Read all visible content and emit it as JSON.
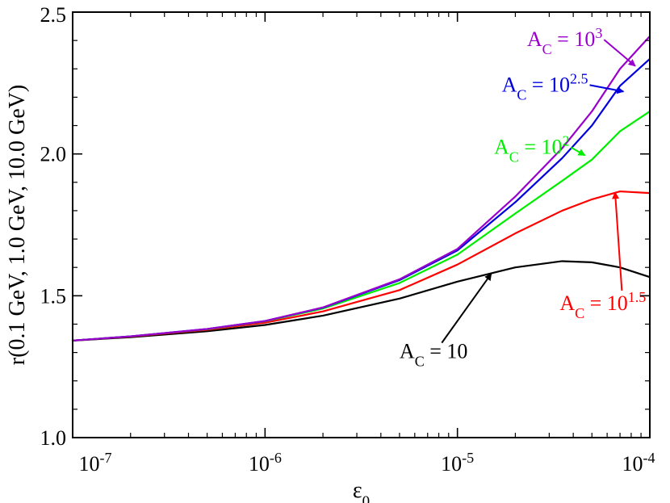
{
  "chart_data": {
    "type": "line",
    "x_scale": "log",
    "xlim": [
      "1e-7",
      "1e-4"
    ],
    "ylim": [
      1.0,
      2.5
    ],
    "grid": false,
    "xlabel": {
      "main": "ε",
      "sub": "0"
    },
    "ylabel": "r(0.1 GeV, 1.0 GeV, 10.0 GeV)",
    "x_ticks": [
      {
        "base": "10",
        "exp": "-7"
      },
      {
        "base": "10",
        "exp": "-6"
      },
      {
        "base": "10",
        "exp": "-5"
      },
      {
        "base": "10",
        "exp": "-4"
      }
    ],
    "y_ticks": [
      "1.0",
      "1.5",
      "2.0",
      "2.5"
    ],
    "series": [
      {
        "key": "ac10",
        "color": "#000000",
        "label": {
          "pre": "A",
          "sub": "C",
          "mid": " = 10",
          "sup": ""
        },
        "x": [
          1e-07,
          2e-07,
          5e-07,
          1e-06,
          2e-06,
          5e-06,
          1e-05,
          2e-05,
          3.5e-05,
          5e-05,
          7e-05,
          0.0001
        ],
        "y": [
          1.342,
          1.354,
          1.375,
          1.397,
          1.43,
          1.49,
          1.55,
          1.6,
          1.622,
          1.618,
          1.6,
          1.566
        ]
      },
      {
        "key": "ac10_1.5",
        "color": "#ff0000",
        "label": {
          "pre": "A",
          "sub": "C",
          "mid": " = 10",
          "sup": "1.5"
        },
        "x": [
          1e-07,
          2e-07,
          5e-07,
          1e-06,
          2e-06,
          5e-06,
          1e-05,
          2e-05,
          3.5e-05,
          5e-05,
          7e-05,
          0.0001
        ],
        "y": [
          1.342,
          1.356,
          1.38,
          1.405,
          1.445,
          1.52,
          1.61,
          1.72,
          1.8,
          1.84,
          1.868,
          1.862
        ]
      },
      {
        "key": "ac10_2",
        "color": "#00ee00",
        "label": {
          "pre": "A",
          "sub": "C",
          "mid": " = 10",
          "sup": "2"
        },
        "x": [
          1e-07,
          2e-07,
          5e-07,
          1e-06,
          2e-06,
          5e-06,
          1e-05,
          2e-05,
          3.5e-05,
          5e-05,
          7e-05,
          0.0001
        ],
        "y": [
          1.342,
          1.357,
          1.382,
          1.41,
          1.455,
          1.545,
          1.645,
          1.79,
          1.905,
          1.98,
          2.08,
          2.15
        ]
      },
      {
        "key": "ac10_2.5",
        "color": "#0000dd",
        "label": {
          "pre": "A",
          "sub": "C",
          "mid": " = 10",
          "sup": "2.5"
        },
        "x": [
          1e-07,
          2e-07,
          5e-07,
          1e-06,
          2e-06,
          5e-06,
          1e-05,
          2e-05,
          3.5e-05,
          5e-05,
          7e-05,
          0.0001
        ],
        "y": [
          1.342,
          1.357,
          1.383,
          1.411,
          1.458,
          1.555,
          1.66,
          1.83,
          1.985,
          2.1,
          2.24,
          2.335
        ]
      },
      {
        "key": "ac10_3",
        "color": "#9900cc",
        "label": {
          "pre": "A",
          "sub": "C",
          "mid": " = 10",
          "sup": "3"
        },
        "x": [
          1e-07,
          2e-07,
          5e-07,
          1e-06,
          2e-06,
          5e-06,
          1e-05,
          2e-05,
          3.5e-05,
          5e-05,
          7e-05,
          0.0001
        ],
        "y": [
          1.342,
          1.357,
          1.383,
          1.411,
          1.459,
          1.558,
          1.665,
          1.85,
          2.02,
          2.15,
          2.3,
          2.415
        ]
      }
    ],
    "annotations": [
      {
        "series": "ac10_3",
        "text_at": [
          2.3e-05,
          2.38
        ],
        "arrow_to": [
          8.4e-05,
          2.31
        ]
      },
      {
        "series": "ac10_2.5",
        "text_at": [
          1.7e-05,
          2.22
        ],
        "arrow_to": [
          7.3e-05,
          2.22
        ]
      },
      {
        "series": "ac10_2",
        "text_at": [
          1.55e-05,
          2.0
        ],
        "arrow_to": [
          4.6e-05,
          1.995
        ]
      },
      {
        "series": "ac10_1.5",
        "text_at": [
          3.4e-05,
          1.45
        ],
        "arrow_to": [
          6.6e-05,
          1.865
        ]
      },
      {
        "series": "ac10",
        "text_at": [
          5e-06,
          1.28
        ],
        "arrow_to": [
          1.5e-05,
          1.578
        ]
      }
    ]
  }
}
